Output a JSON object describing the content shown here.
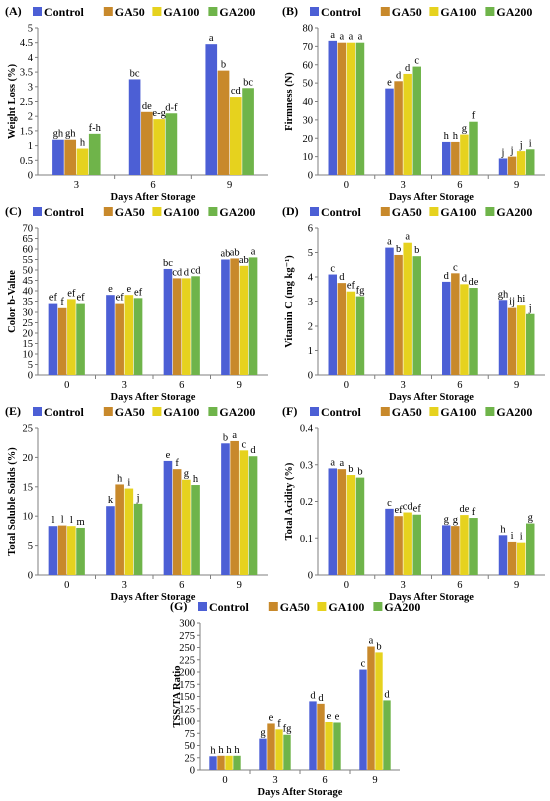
{
  "colors": {
    "Control": "#4c5fd5",
    "GA50": "#c8892b",
    "GA100": "#e6d21e",
    "GA200": "#6fb44a",
    "axis": "#7f7f7f"
  },
  "chart_data": [
    {
      "type": "bar",
      "panel": "(A)",
      "categories": [
        "3",
        "6",
        "9"
      ],
      "xlabel": "Days After Storage",
      "ylabel": "Weight Loss (%)",
      "ylim": [
        0,
        5
      ],
      "yticks": [
        0,
        0.5,
        1,
        1.5,
        2,
        2.5,
        3,
        3.5,
        4,
        4.5,
        5
      ],
      "legend": "top",
      "series": [
        {
          "name": "Control",
          "values": [
            1.2,
            3.25,
            4.45
          ],
          "letters": [
            "gh",
            "bc",
            "a"
          ]
        },
        {
          "name": "GA50",
          "values": [
            1.2,
            2.15,
            3.55
          ],
          "letters": [
            "gh",
            "de",
            "b"
          ]
        },
        {
          "name": "GA100",
          "values": [
            0.9,
            1.9,
            2.65
          ],
          "letters": [
            "h",
            "e-g",
            "cd"
          ]
        },
        {
          "name": "GA200",
          "values": [
            1.4,
            2.1,
            2.95
          ],
          "letters": [
            "f-h",
            "d-f",
            "bc"
          ]
        }
      ]
    },
    {
      "type": "bar",
      "panel": "(B)",
      "categories": [
        "0",
        "3",
        "6",
        "9"
      ],
      "xlabel": "Days After Storage",
      "ylabel": "Firmness (N)",
      "ylim": [
        0,
        80
      ],
      "yticks": [
        0,
        10,
        20,
        30,
        40,
        50,
        60,
        70,
        80
      ],
      "legend": "top",
      "series": [
        {
          "name": "Control",
          "values": [
            73,
            47,
            18,
            9
          ],
          "letters": [
            "a",
            "e",
            "h",
            "j"
          ]
        },
        {
          "name": "GA50",
          "values": [
            72,
            51,
            18,
            10
          ],
          "letters": [
            "a",
            "d",
            "h",
            "j"
          ]
        },
        {
          "name": "GA100",
          "values": [
            72,
            55,
            22,
            13
          ],
          "letters": [
            "a",
            "d",
            "g",
            "j"
          ]
        },
        {
          "name": "GA200",
          "values": [
            72,
            59,
            29,
            14
          ],
          "letters": [
            "a",
            "c",
            "f",
            "i"
          ]
        }
      ]
    },
    {
      "type": "bar",
      "panel": "(C)",
      "categories": [
        "0",
        "3",
        "6",
        "9"
      ],
      "xlabel": "Days After Storage",
      "ylabel": "Color b-Value",
      "ylim": [
        0,
        70
      ],
      "yticks": [
        0,
        5,
        10,
        15,
        20,
        25,
        30,
        35,
        40,
        45,
        50,
        55,
        60,
        65,
        70
      ],
      "legend": "top",
      "series": [
        {
          "name": "Control",
          "values": [
            34,
            38,
            50.5,
            55
          ],
          "letters": [
            "ef",
            "e",
            "bc",
            "ab"
          ]
        },
        {
          "name": "GA50",
          "values": [
            32,
            34,
            46,
            55.5
          ],
          "letters": [
            "f",
            "ef",
            "cd",
            "ab"
          ]
        },
        {
          "name": "GA100",
          "values": [
            36,
            38,
            46,
            52
          ],
          "letters": [
            "ef",
            "e",
            "d",
            "ab"
          ]
        },
        {
          "name": "GA200",
          "values": [
            34,
            36.5,
            47,
            56
          ],
          "letters": [
            "ef",
            "ef",
            "cd",
            "a"
          ]
        }
      ]
    },
    {
      "type": "bar",
      "panel": "(D)",
      "categories": [
        "0",
        "3",
        "6",
        "9"
      ],
      "xlabel": "Days After Storage",
      "ylabel": "Vitamin C (mg kg⁻¹)",
      "ylim": [
        0,
        6
      ],
      "yticks": [
        0,
        1,
        2,
        3,
        4,
        5,
        6
      ],
      "legend": "top",
      "series": [
        {
          "name": "Control",
          "values": [
            4.1,
            5.2,
            3.8,
            3.05
          ],
          "letters": [
            "c",
            "a",
            "d",
            "gh"
          ]
        },
        {
          "name": "GA50",
          "values": [
            3.75,
            4.9,
            4.15,
            2.75
          ],
          "letters": [
            "d",
            "b",
            "c",
            "ij"
          ]
        },
        {
          "name": "GA100",
          "values": [
            3.4,
            5.4,
            3.7,
            2.85
          ],
          "letters": [
            "ef",
            "a",
            "d",
            "hi"
          ]
        },
        {
          "name": "GA200",
          "values": [
            3.2,
            4.85,
            3.55,
            2.5
          ],
          "letters": [
            "fg",
            "b",
            "de",
            "j"
          ]
        }
      ]
    },
    {
      "type": "bar",
      "panel": "(E)",
      "categories": [
        "0",
        "3",
        "6",
        "9"
      ],
      "xlabel": "Days After Storage",
      "ylabel": "Total Soluble Solids (%)",
      "ylim": [
        0,
        25
      ],
      "yticks": [
        0,
        5,
        10,
        15,
        20,
        25
      ],
      "legend": "top",
      "series": [
        {
          "name": "Control",
          "values": [
            8.3,
            11.7,
            19.4,
            22.4
          ],
          "letters": [
            "l",
            "k",
            "e",
            "b"
          ]
        },
        {
          "name": "GA50",
          "values": [
            8.4,
            15.4,
            18.0,
            22.8
          ],
          "letters": [
            "l",
            "h",
            "f",
            "a"
          ]
        },
        {
          "name": "GA100",
          "values": [
            8.3,
            14.7,
            16.2,
            21.2
          ],
          "letters": [
            "l",
            "i",
            "g",
            "c"
          ]
        },
        {
          "name": "GA200",
          "values": [
            8.0,
            12.1,
            15.3,
            20.2
          ],
          "letters": [
            "m",
            "j",
            "h",
            "d"
          ]
        }
      ]
    },
    {
      "type": "bar",
      "panel": "(F)",
      "categories": [
        "0",
        "3",
        "6",
        "9"
      ],
      "xlabel": "Days After Storage",
      "ylabel": "Total Acidity (%)",
      "ylim": [
        0,
        0.4
      ],
      "yticks": [
        0,
        0.1,
        0.2,
        0.3,
        0.4
      ],
      "legend": "top",
      "series": [
        {
          "name": "Control",
          "values": [
            0.29,
            0.18,
            0.135,
            0.108
          ],
          "letters": [
            "a",
            "c",
            "g",
            "h"
          ]
        },
        {
          "name": "GA50",
          "values": [
            0.288,
            0.16,
            0.133,
            0.09
          ],
          "letters": [
            "a",
            "ef",
            "g",
            "i"
          ]
        },
        {
          "name": "GA100",
          "values": [
            0.272,
            0.17,
            0.163,
            0.088
          ],
          "letters": [
            "b",
            "cd",
            "de",
            "i"
          ]
        },
        {
          "name": "GA200",
          "values": [
            0.265,
            0.164,
            0.155,
            0.14
          ],
          "letters": [
            "b",
            "ef",
            "f",
            "g"
          ]
        }
      ]
    },
    {
      "type": "bar",
      "panel": "(G)",
      "categories": [
        "0",
        "3",
        "6",
        "9"
      ],
      "xlabel": "Days After Storage",
      "ylabel": "TSS/TA Ratio",
      "ylim": [
        0,
        300
      ],
      "yticks": [
        0,
        25,
        50,
        75,
        100,
        125,
        150,
        175,
        200,
        225,
        250,
        275,
        300
      ],
      "legend": "top",
      "series": [
        {
          "name": "Control",
          "values": [
            28,
            64,
            140,
            205
          ],
          "letters": [
            "h",
            "g",
            "d",
            "c"
          ]
        },
        {
          "name": "GA50",
          "values": [
            29,
            95,
            135,
            252
          ],
          "letters": [
            "h",
            "e",
            "d",
            "a"
          ]
        },
        {
          "name": "GA100",
          "values": [
            29,
            83,
            98,
            240
          ],
          "letters": [
            "h",
            "f",
            "e",
            "b"
          ]
        },
        {
          "name": "GA200",
          "values": [
            29,
            72,
            97,
            142
          ],
          "letters": [
            "h",
            "fg",
            "e",
            "d"
          ]
        }
      ]
    }
  ]
}
